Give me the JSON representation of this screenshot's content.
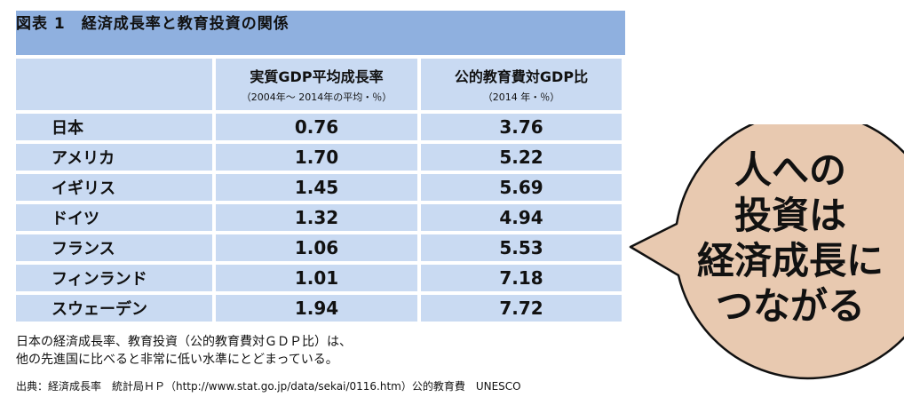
{
  "title": "図表 1　経済成長率と教育投資の関係",
  "columns": {
    "col1_main": "実質GDP平均成長率",
    "col1_sub": "（2004年～ 2014年の平均・％）",
    "col2_main": "公的教育費対GDP比",
    "col2_sub": "（2014 年・％）"
  },
  "rows": [
    {
      "country": "日本",
      "growth": "0.76",
      "edu": "3.76"
    },
    {
      "country": "アメリカ",
      "growth": "1.70",
      "edu": "5.22"
    },
    {
      "country": "イギリス",
      "growth": "1.45",
      "edu": "5.69"
    },
    {
      "country": "ドイツ",
      "growth": "1.32",
      "edu": "4.94"
    },
    {
      "country": "フランス",
      "growth": "1.06",
      "edu": "5.53"
    },
    {
      "country": "フィンランド",
      "growth": "1.01",
      "edu": "7.18"
    },
    {
      "country": "スウェーデン",
      "growth": "1.94",
      "edu": "7.72"
    }
  ],
  "note": {
    "line1": "日本の経済成長率、教育投資（公的教育費対ＧＤＰ比）は、",
    "line2": "他の先進国に比べると非常に低い水準にとどまっている。"
  },
  "source": "出典：経済成長率　統計局ＨＰ（http://www.stat.go.jp/data/sekai/0116.htm）公的教育費　UNESCO",
  "bubble": {
    "line1": "人への",
    "line2": "投資は",
    "line3": "経済成長に",
    "line4": "つながる"
  },
  "colors": {
    "title_bar": "#8fb0df",
    "cell": "#c9daf2",
    "bubble": "#e8c9b0"
  }
}
